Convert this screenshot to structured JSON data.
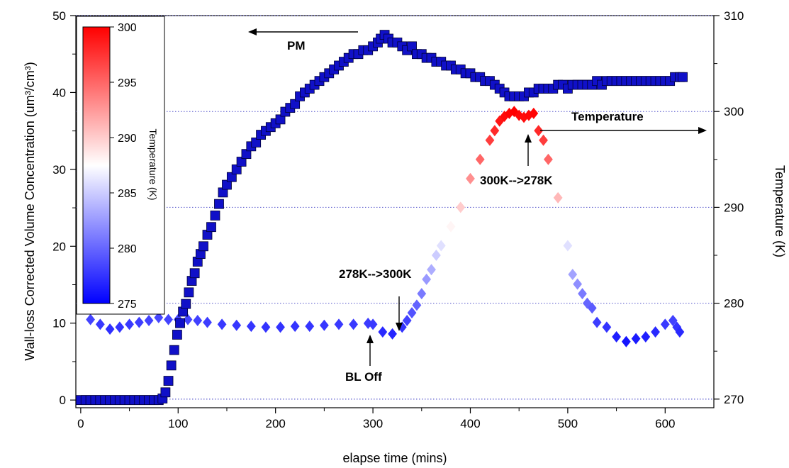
{
  "chart_data": {
    "type": "scatter",
    "title": "",
    "xlabel": "elapse time (mins)",
    "ylabel_left": "Wall-loss Corrected Volume Concentration (um³/cm³)",
    "ylabel_right": "Temperature (K)",
    "xlim": [
      -5,
      650
    ],
    "ylim_left": [
      -1,
      50
    ],
    "ylim_right": [
      269.1,
      310
    ],
    "x_ticks": [
      0,
      100,
      200,
      300,
      400,
      500,
      600
    ],
    "y_left_ticks": [
      0,
      10,
      20,
      30,
      40,
      50
    ],
    "y_right_ticks": [
      270,
      280,
      290,
      300,
      310
    ],
    "grid": "horizontal dotted",
    "colorbar": {
      "title": "Temperature (K)",
      "range": [
        275,
        300
      ],
      "ticks": [
        275,
        280,
        285,
        290,
        295,
        300
      ],
      "colors": {
        "low": "#0000ff",
        "mid": "#ffffff",
        "high": "#ff0000"
      }
    },
    "series": [
      {
        "name": "PM",
        "axis": "left",
        "marker": "square",
        "color": "#1010c8",
        "points": [
          [
            0,
            0
          ],
          [
            5,
            0
          ],
          [
            10,
            0
          ],
          [
            15,
            0
          ],
          [
            20,
            0
          ],
          [
            25,
            0
          ],
          [
            30,
            0
          ],
          [
            35,
            0
          ],
          [
            40,
            0
          ],
          [
            45,
            0
          ],
          [
            50,
            0
          ],
          [
            55,
            0
          ],
          [
            60,
            0
          ],
          [
            65,
            0
          ],
          [
            70,
            0
          ],
          [
            75,
            0
          ],
          [
            80,
            0
          ],
          [
            84,
            0.2
          ],
          [
            87,
            1
          ],
          [
            90,
            2.5
          ],
          [
            93,
            4.5
          ],
          [
            96,
            6.5
          ],
          [
            99,
            8.5
          ],
          [
            102,
            10
          ],
          [
            105,
            11.5
          ],
          [
            108,
            12.5
          ],
          [
            111,
            14
          ],
          [
            114,
            15.5
          ],
          [
            117,
            16.5
          ],
          [
            120,
            18
          ],
          [
            123,
            19
          ],
          [
            126,
            20
          ],
          [
            130,
            21.5
          ],
          [
            134,
            22.5
          ],
          [
            138,
            24
          ],
          [
            142,
            25.5
          ],
          [
            146,
            27
          ],
          [
            150,
            28
          ],
          [
            155,
            29
          ],
          [
            160,
            30
          ],
          [
            165,
            31
          ],
          [
            170,
            32
          ],
          [
            175,
            33
          ],
          [
            180,
            33.5
          ],
          [
            185,
            34.5
          ],
          [
            190,
            35
          ],
          [
            195,
            35.5
          ],
          [
            200,
            36
          ],
          [
            205,
            36.5
          ],
          [
            210,
            37.5
          ],
          [
            215,
            38
          ],
          [
            220,
            38.5
          ],
          [
            225,
            39.5
          ],
          [
            230,
            40
          ],
          [
            235,
            40.5
          ],
          [
            240,
            41
          ],
          [
            245,
            41.5
          ],
          [
            250,
            42
          ],
          [
            255,
            42.5
          ],
          [
            260,
            43
          ],
          [
            265,
            43.5
          ],
          [
            270,
            44
          ],
          [
            275,
            44.5
          ],
          [
            280,
            45
          ],
          [
            285,
            45
          ],
          [
            290,
            45.5
          ],
          [
            295,
            45.5
          ],
          [
            300,
            46
          ],
          [
            305,
            46.5
          ],
          [
            308,
            47
          ],
          [
            312,
            47.5
          ],
          [
            316,
            47
          ],
          [
            320,
            46.5
          ],
          [
            325,
            46.5
          ],
          [
            330,
            46
          ],
          [
            335,
            45.5
          ],
          [
            340,
            46
          ],
          [
            345,
            45
          ],
          [
            350,
            45
          ],
          [
            355,
            44.5
          ],
          [
            360,
            44.5
          ],
          [
            365,
            44
          ],
          [
            370,
            44
          ],
          [
            375,
            43.5
          ],
          [
            380,
            43.5
          ],
          [
            385,
            43
          ],
          [
            390,
            43
          ],
          [
            395,
            42.5
          ],
          [
            400,
            42.5
          ],
          [
            405,
            42
          ],
          [
            410,
            42
          ],
          [
            415,
            41.5
          ],
          [
            420,
            41.5
          ],
          [
            425,
            41
          ],
          [
            430,
            40.5
          ],
          [
            435,
            40
          ],
          [
            440,
            39.5
          ],
          [
            445,
            39.5
          ],
          [
            450,
            39.5
          ],
          [
            455,
            39.5
          ],
          [
            460,
            40
          ],
          [
            465,
            40
          ],
          [
            470,
            40.5
          ],
          [
            475,
            40.5
          ],
          [
            480,
            40.5
          ],
          [
            485,
            40.5
          ],
          [
            490,
            41
          ],
          [
            495,
            41
          ],
          [
            500,
            40.5
          ],
          [
            505,
            41
          ],
          [
            510,
            41
          ],
          [
            515,
            41
          ],
          [
            520,
            41
          ],
          [
            525,
            41
          ],
          [
            530,
            41.5
          ],
          [
            535,
            41
          ],
          [
            540,
            41.5
          ],
          [
            545,
            41.5
          ],
          [
            550,
            41.5
          ],
          [
            555,
            41.5
          ],
          [
            560,
            41.5
          ],
          [
            565,
            41.5
          ],
          [
            570,
            41.5
          ],
          [
            575,
            41.5
          ],
          [
            580,
            41.5
          ],
          [
            585,
            41.5
          ],
          [
            590,
            41.5
          ],
          [
            595,
            41.5
          ],
          [
            600,
            41.5
          ],
          [
            605,
            41.5
          ],
          [
            610,
            42
          ],
          [
            615,
            42
          ],
          [
            618,
            42
          ]
        ]
      },
      {
        "name": "Temperature",
        "axis": "right",
        "marker": "diamond",
        "color_by": "value",
        "points": [
          [
            10,
            278.3
          ],
          [
            20,
            277.8
          ],
          [
            30,
            277.3
          ],
          [
            40,
            277.5
          ],
          [
            50,
            277.8
          ],
          [
            60,
            278
          ],
          [
            70,
            278.2
          ],
          [
            80,
            278.5
          ],
          [
            90,
            278.3
          ],
          [
            100,
            278.3
          ],
          [
            110,
            278.3
          ],
          [
            120,
            278.2
          ],
          [
            130,
            278
          ],
          [
            145,
            277.8
          ],
          [
            160,
            277.7
          ],
          [
            175,
            277.6
          ],
          [
            190,
            277.5
          ],
          [
            205,
            277.5
          ],
          [
            220,
            277.6
          ],
          [
            235,
            277.6
          ],
          [
            250,
            277.7
          ],
          [
            265,
            277.8
          ],
          [
            280,
            277.8
          ],
          [
            295,
            277.9
          ],
          [
            300,
            277.8
          ],
          [
            310,
            277
          ],
          [
            320,
            276.8
          ],
          [
            330,
            277.5
          ],
          [
            335,
            278.2
          ],
          [
            340,
            279
          ],
          [
            345,
            279.8
          ],
          [
            350,
            281
          ],
          [
            355,
            282.5
          ],
          [
            360,
            283.5
          ],
          [
            365,
            285
          ],
          [
            370,
            286
          ],
          [
            380,
            288
          ],
          [
            390,
            290
          ],
          [
            400,
            293
          ],
          [
            410,
            295
          ],
          [
            420,
            297
          ],
          [
            425,
            298
          ],
          [
            430,
            299
          ],
          [
            435,
            299.5
          ],
          [
            440,
            299.8
          ],
          [
            445,
            300
          ],
          [
            450,
            299.6
          ],
          [
            455,
            299.4
          ],
          [
            460,
            299.6
          ],
          [
            465,
            299.8
          ],
          [
            470,
            298
          ],
          [
            475,
            297
          ],
          [
            480,
            295
          ],
          [
            490,
            291
          ],
          [
            500,
            286
          ],
          [
            505,
            283
          ],
          [
            510,
            282
          ],
          [
            515,
            281
          ],
          [
            520,
            280
          ],
          [
            525,
            279.5
          ],
          [
            530,
            278
          ],
          [
            540,
            277.5
          ],
          [
            550,
            276.5
          ],
          [
            560,
            276
          ],
          [
            570,
            276.3
          ],
          [
            580,
            276.5
          ],
          [
            590,
            277
          ],
          [
            600,
            277.8
          ],
          [
            608,
            278.2
          ],
          [
            612,
            277.5
          ],
          [
            615,
            277
          ]
        ]
      }
    ],
    "annotations": [
      {
        "text": "PM",
        "arrow": "left"
      },
      {
        "text": "Temperature",
        "arrow": "right"
      },
      {
        "text": "278K-->300K",
        "x": 330,
        "y_right": 277.5
      },
      {
        "text": "BL Off",
        "x": 300,
        "y_right": 277.8
      },
      {
        "text": "300K-->278K",
        "x": 462,
        "y_right": 299.6
      }
    ]
  }
}
